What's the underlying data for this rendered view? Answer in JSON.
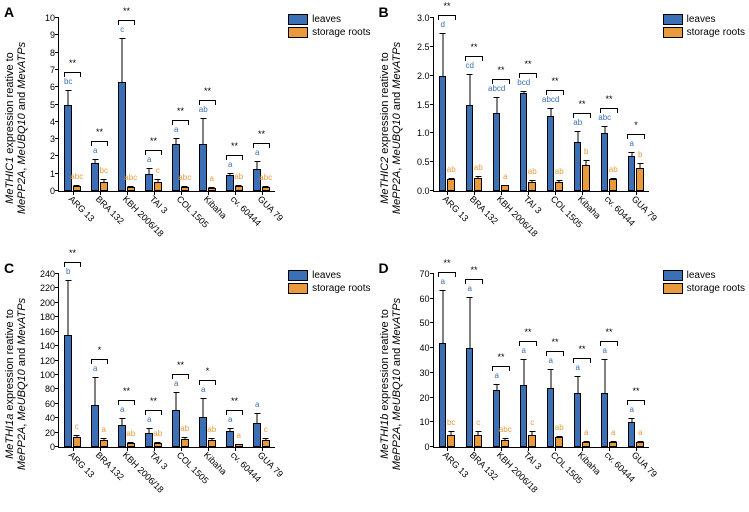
{
  "colors": {
    "leaves": "#3b6fb6",
    "roots": "#e99a3c",
    "leaves_letter": "#3b6fb6",
    "roots_letter": "#e99a3c"
  },
  "legend": {
    "leaves": "leaves",
    "roots": "storage roots"
  },
  "categories": [
    "ARG 13",
    "BRA 132",
    "KBH 2006/18",
    "TAI 3",
    "COL 1505",
    "Kibaha",
    "cv. 60444",
    "GUA 79"
  ],
  "panels": {
    "A": {
      "gene": "MeTHIC1",
      "ylim": [
        0,
        10
      ],
      "ytick_step": 1,
      "data": {
        "leaves": {
          "values": [
            5.0,
            1.6,
            6.3,
            1.0,
            2.7,
            2.7,
            0.9,
            1.3
          ],
          "err": [
            0.9,
            0.3,
            2.6,
            0.4,
            0.4,
            1.6,
            0.2,
            0.5
          ],
          "letters": [
            "bc",
            "a",
            "c",
            "a",
            "a",
            "ab",
            "a",
            "a"
          ]
        },
        "roots": {
          "values": [
            0.3,
            0.55,
            0.25,
            0.55,
            0.25,
            0.2,
            0.3,
            0.25
          ],
          "err": [
            0.1,
            0.2,
            0.1,
            0.2,
            0.1,
            0.1,
            0.1,
            0.1
          ],
          "letters": [
            "abc",
            "bc",
            "abc",
            "c",
            "abc",
            "a",
            "ab",
            "abc"
          ]
        }
      },
      "sig": [
        "**",
        "**",
        "**",
        "**",
        "**",
        "**",
        "**",
        "**"
      ]
    },
    "B": {
      "gene": "MeTHIC2",
      "ylim": [
        0,
        3.0
      ],
      "ytick_step": 0.5,
      "data": {
        "leaves": {
          "values": [
            2.0,
            1.5,
            1.35,
            1.7,
            1.3,
            0.85,
            1.0,
            0.6
          ],
          "err": [
            0.75,
            0.55,
            0.3,
            0.05,
            0.15,
            0.2,
            0.15,
            0.1
          ],
          "letters": [
            "d",
            "cd",
            "abcd",
            "bcd",
            "abcd",
            "ab",
            "abc",
            "a"
          ]
        },
        "roots": {
          "values": [
            0.2,
            0.22,
            0.1,
            0.15,
            0.16,
            0.45,
            0.2,
            0.4
          ],
          "err": [
            0.05,
            0.05,
            0.03,
            0.05,
            0.05,
            0.1,
            0.05,
            0.1
          ],
          "letters": [
            "ab",
            "ab",
            "a",
            "ab",
            "ab",
            "b",
            "ab",
            "b"
          ]
        }
      },
      "sig": [
        "**",
        "**",
        "**",
        "**",
        "**",
        "**",
        "**",
        "*"
      ]
    },
    "C": {
      "gene": "MeTHI1a",
      "ylim": [
        0,
        240
      ],
      "ytick_step": 20,
      "data": {
        "leaves": {
          "values": [
            155,
            58,
            30,
            20,
            52,
            42,
            22,
            34
          ],
          "err": [
            78,
            40,
            12,
            8,
            26,
            28,
            6,
            14
          ],
          "letters": [
            "b",
            "a",
            "a",
            "a",
            "a",
            "a",
            "a",
            "a"
          ]
        },
        "roots": {
          "values": [
            14,
            10,
            6,
            6,
            11,
            10,
            4,
            10
          ],
          "err": [
            4,
            4,
            3,
            3,
            4,
            4,
            2,
            4
          ],
          "letters": [
            "c",
            "a",
            "ab",
            "ab",
            "ab",
            "ab",
            "a",
            "c"
          ]
        }
      },
      "sig": [
        "**",
        "*",
        "**",
        "**",
        "**",
        "*",
        "**",
        ""
      ]
    },
    "D": {
      "gene": "MeTHI1b",
      "ylim": [
        0,
        70
      ],
      "ytick_step": 10,
      "data": {
        "leaves": {
          "values": [
            42,
            40,
            23,
            25,
            24,
            22,
            22,
            10
          ],
          "err": [
            22,
            21,
            3,
            11,
            8,
            7,
            14,
            2
          ],
          "letters": [
            "a",
            "a",
            "a",
            "a",
            "a",
            "a",
            "a",
            "a"
          ]
        },
        "roots": {
          "values": [
            5,
            5,
            3,
            5,
            4,
            2,
            2,
            2
          ],
          "err": [
            2,
            2,
            1,
            2,
            1,
            1,
            1,
            1
          ],
          "letters": [
            "bc",
            "c",
            "abc",
            "c",
            "ab",
            "a",
            "a",
            "a"
          ]
        }
      },
      "sig": [
        "**",
        "**",
        "**",
        "**",
        "**",
        "**",
        "**",
        "**"
      ]
    }
  },
  "yaxis_phrase_1": " expression reative to",
  "yaxis_phrase_2a": "MePP2A",
  "yaxis_phrase_2b": ", ",
  "yaxis_phrase_2c": "MeUBQ10",
  "yaxis_phrase_2d": " and ",
  "yaxis_phrase_2e": "MevATPs"
}
